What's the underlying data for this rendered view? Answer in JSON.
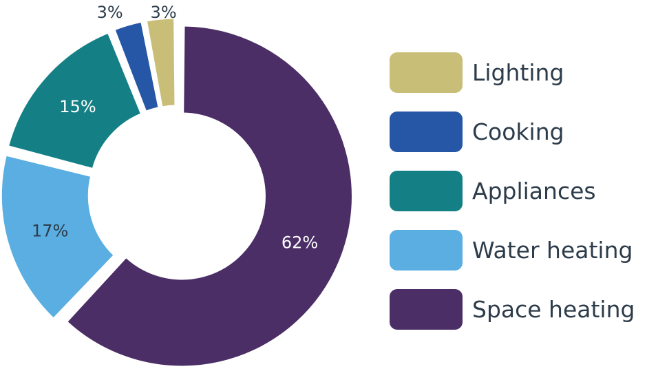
{
  "chart_data": {
    "type": "pie",
    "variant": "donut",
    "title": "",
    "categories": [
      "Lighting",
      "Cooking",
      "Appliances",
      "Water heating",
      "Space heating"
    ],
    "values": [
      3,
      3,
      15,
      17,
      62
    ],
    "data_labels": [
      "3%",
      "3%",
      "15%",
      "17%",
      "62%"
    ],
    "colors": [
      "#c9be78",
      "#2656a6",
      "#148086",
      "#5aaee2",
      "#4b2e66"
    ],
    "label_colors": [
      "#2d3c4a",
      "#2d3c4a",
      "#ffffff",
      "#2d3c4a",
      "#ffffff"
    ],
    "legend_position": "right"
  },
  "legend": {
    "items": [
      {
        "label": "Lighting",
        "color": "#c9be78"
      },
      {
        "label": "Cooking",
        "color": "#2656a6"
      },
      {
        "label": "Appliances",
        "color": "#148086"
      },
      {
        "label": "Water heating",
        "color": "#5aaee2"
      },
      {
        "label": "Space heating",
        "color": "#4b2e66"
      }
    ]
  }
}
